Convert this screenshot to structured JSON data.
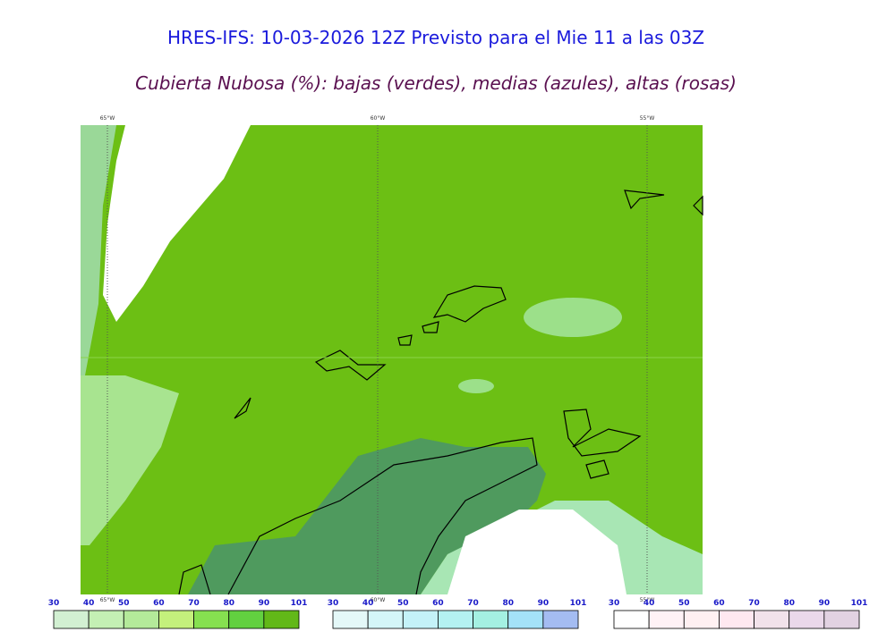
{
  "header": {
    "title": "HRES-IFS: 10-03-2026 12Z Previsto para el Mie 11 a las 03Z",
    "subtitle": "Cubierta Nubosa (%): bajas (verdes), medias (azules), altas (rosas)"
  },
  "map": {
    "lon_labels_top": [
      "65°W",
      "60°W",
      "55°W"
    ],
    "lon_labels_bottom": [
      "65°W",
      "60°W",
      "55°W"
    ]
  },
  "legends": [
    {
      "name": "bajas",
      "ticks": [
        30,
        40,
        50,
        60,
        70,
        80,
        90,
        101
      ],
      "colors": [
        "#d2f0d2",
        "#c4f0b4",
        "#b4ea9a",
        "#c4f07c",
        "#86e050",
        "#62d040",
        "#62b818"
      ]
    },
    {
      "name": "medias",
      "ticks": [
        30,
        40,
        50,
        60,
        70,
        80,
        90,
        101
      ],
      "colors": [
        "#e4f8f8",
        "#d4f6f8",
        "#c4f2f8",
        "#b4f2f2",
        "#a4f0e2",
        "#a4e2f8",
        "#a4bcf2"
      ]
    },
    {
      "name": "altas",
      "ticks": [
        30,
        40,
        50,
        60,
        70,
        80,
        90,
        101
      ],
      "colors": [
        "#ffffff",
        "#fff2f6",
        "#fff0f2",
        "#ffe8f0",
        "#f2e2ea",
        "#ead8ea",
        "#e2d2e2"
      ]
    }
  ]
}
